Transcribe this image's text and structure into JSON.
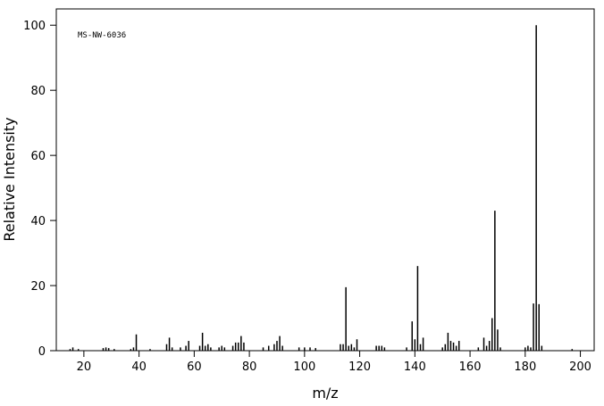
{
  "chart_data": {
    "type": "spectrum",
    "annotation": "MS-NW-6036",
    "x_label": "m/z",
    "y_label": "Relative Intensity",
    "x": [
      15,
      16,
      18,
      27,
      28,
      29,
      31,
      37,
      38,
      39,
      44,
      50,
      51,
      52,
      55,
      57,
      58,
      62,
      63,
      64,
      65,
      66,
      69,
      70,
      71,
      74,
      75,
      76,
      77,
      78,
      85,
      87,
      89,
      90,
      91,
      92,
      98,
      100,
      102,
      104,
      113,
      114,
      115,
      116,
      117,
      118,
      119,
      126,
      127,
      128,
      129,
      137,
      139,
      140,
      141,
      142,
      143,
      150,
      151,
      152,
      153,
      154,
      155,
      156,
      163,
      165,
      166,
      167,
      168,
      169,
      170,
      171,
      180,
      181,
      182,
      183,
      184,
      185,
      186,
      197
    ],
    "values": [
      0.5,
      1,
      0.5,
      0.8,
      1,
      0.8,
      0.5,
      0.5,
      1,
      5,
      0.5,
      2,
      4,
      1,
      1,
      1.5,
      3,
      1.5,
      5.5,
      1.5,
      2,
      1,
      1,
      1.5,
      1,
      1.5,
      2.5,
      2.5,
      4.5,
      2.5,
      1,
      1.5,
      2,
      3,
      4.5,
      1.5,
      1,
      1,
      1,
      0.8,
      2,
      2,
      19.5,
      1.5,
      2,
      1,
      3.5,
      1.5,
      1.5,
      1.5,
      1,
      1,
      9,
      3.5,
      26,
      2,
      4,
      1,
      2,
      5.5,
      3,
      2.5,
      1.5,
      3,
      1,
      4,
      1.5,
      3,
      10,
      43,
      6.5,
      1,
      1,
      1.5,
      1,
      14.5,
      100,
      14.3,
      1.5,
      0.5
    ],
    "color": "#000000",
    "xlim": [
      10,
      205
    ],
    "ylim": [
      0,
      105
    ],
    "xticks": [
      20,
      40,
      60,
      80,
      100,
      120,
      140,
      160,
      180,
      200
    ],
    "yticks": [
      0,
      20,
      40,
      60,
      80,
      100
    ]
  }
}
